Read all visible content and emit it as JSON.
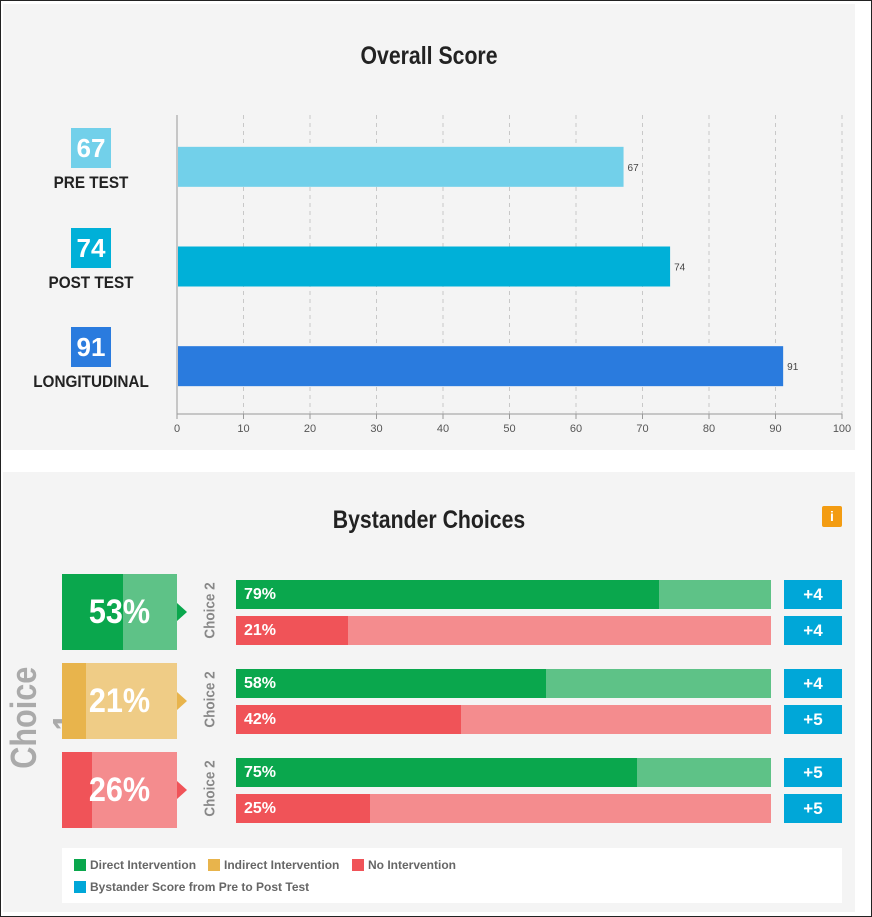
{
  "charts": {
    "overall_title": "Overall Score",
    "bystander_title": "Bystander Choices",
    "choice1_label": "Choice 1",
    "choice2_label": "Choice 2"
  },
  "chart_data": [
    {
      "type": "bar",
      "orientation": "horizontal",
      "title": "Overall Score",
      "categories": [
        "PRE TEST",
        "POST TEST",
        "LONGITUDINAL"
      ],
      "values": [
        67,
        74,
        91
      ],
      "xlim": [
        0,
        100
      ],
      "xticks": [
        "0",
        "10",
        "20",
        "30",
        "40",
        "50",
        "60",
        "70",
        "80",
        "90",
        "100"
      ],
      "colors": [
        "#72d0ea",
        "#00b0d8",
        "#2a7bde"
      ],
      "grid": "vertical-dashed",
      "value_labels": [
        "67",
        "74",
        "91"
      ]
    },
    {
      "type": "bar",
      "orientation": "horizontal",
      "stacked": true,
      "title": "Bystander Choices",
      "choice1": [
        {
          "category": "Direct Intervention",
          "percent": 53,
          "label": "53%",
          "color": "#0aa74d",
          "light_color": "#5ec287"
        },
        {
          "category": "Indirect Intervention",
          "percent": 21,
          "label": "21%",
          "color": "#e8b44c",
          "light_color": "#efcc86"
        },
        {
          "category": "No Intervention",
          "percent": 26,
          "label": "26%",
          "color": "#f05358",
          "light_color": "#f48c8e"
        }
      ],
      "choice2": [
        [
          {
            "percent": 79,
            "label": "79%",
            "color": "#0aa74d",
            "rest_color": "#5ec287",
            "delta": "+4"
          },
          {
            "percent": 21,
            "label": "21%",
            "color": "#f05358",
            "rest_color": "#f48c8e",
            "delta": "+4"
          }
        ],
        [
          {
            "percent": 58,
            "label": "58%",
            "color": "#0aa74d",
            "rest_color": "#5ec287",
            "delta": "+4"
          },
          {
            "percent": 42,
            "label": "42%",
            "color": "#f05358",
            "rest_color": "#f48c8e",
            "delta": "+5"
          }
        ],
        [
          {
            "percent": 75,
            "label": "75%",
            "color": "#0aa74d",
            "rest_color": "#5ec287",
            "delta": "+5"
          },
          {
            "percent": 25,
            "label": "25%",
            "color": "#f05358",
            "rest_color": "#f48c8e",
            "delta": "+5"
          }
        ]
      ],
      "legend": [
        {
          "label": "Direct Intervention",
          "color": "#0aa74d"
        },
        {
          "label": "Indirect Intervention",
          "color": "#e8b44c"
        },
        {
          "label": "No Intervention",
          "color": "#f05358"
        },
        {
          "label": "Bystander Score from Pre to Post Test",
          "color": "#00a7d8"
        }
      ]
    }
  ]
}
